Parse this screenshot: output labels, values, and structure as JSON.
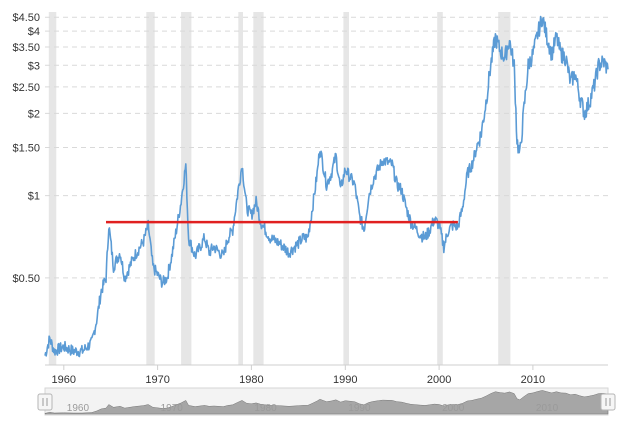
{
  "chart_data": {
    "type": "line",
    "title": "",
    "xlabel": "",
    "ylabel": "",
    "y_scale": "log",
    "ylim": [
      0.24,
      4.7
    ],
    "xlim": [
      1958.0,
      2018.0
    ],
    "grid": true,
    "legend": "none",
    "y_ticks": [
      {
        "value": 4.5,
        "label": "$4.50"
      },
      {
        "value": 4.0,
        "label": "$4"
      },
      {
        "value": 3.5,
        "label": "$3.50"
      },
      {
        "value": 3.0,
        "label": "$3"
      },
      {
        "value": 2.5,
        "label": "$2.50"
      },
      {
        "value": 2.0,
        "label": "$2"
      },
      {
        "value": 1.5,
        "label": "$1.50"
      },
      {
        "value": 1.0,
        "label": "$1"
      },
      {
        "value": 0.5,
        "label": "$0.50"
      }
    ],
    "x_ticks": [
      {
        "value": 1960,
        "label": "1960"
      },
      {
        "value": 1970,
        "label": "1970"
      },
      {
        "value": 1980,
        "label": "1980"
      },
      {
        "value": 1990,
        "label": "1990"
      },
      {
        "value": 2000,
        "label": "2000"
      },
      {
        "value": 2010,
        "label": "2010"
      }
    ],
    "recessions": [
      [
        1958.4,
        1959.2
      ],
      [
        1968.8,
        1969.7
      ],
      [
        1972.5,
        1973.6
      ],
      [
        1978.6,
        1979.1
      ],
      [
        1980.2,
        1981.3
      ],
      [
        1989.8,
        1990.4
      ],
      [
        1999.8,
        2000.4
      ],
      [
        2006.3,
        2007.6
      ]
    ],
    "reference_line": {
      "x_start": 1964.5,
      "x_end": 2002.0,
      "value": 0.8,
      "color": "#e02020"
    },
    "series": [
      {
        "color": "#5b9bd5",
        "points": [
          [
            1958.0,
            0.26
          ],
          [
            1958.5,
            0.3
          ],
          [
            1959.0,
            0.27
          ],
          [
            1960.0,
            0.28
          ],
          [
            1961.0,
            0.27
          ],
          [
            1962.0,
            0.27
          ],
          [
            1963.0,
            0.29
          ],
          [
            1963.5,
            0.35
          ],
          [
            1964.0,
            0.45
          ],
          [
            1964.5,
            0.5
          ],
          [
            1964.8,
            0.78
          ],
          [
            1965.3,
            0.55
          ],
          [
            1966.0,
            0.62
          ],
          [
            1966.5,
            0.5
          ],
          [
            1967.5,
            0.6
          ],
          [
            1968.5,
            0.68
          ],
          [
            1969.0,
            0.78
          ],
          [
            1969.5,
            0.55
          ],
          [
            1970.5,
            0.48
          ],
          [
            1971.0,
            0.5
          ],
          [
            1971.5,
            0.6
          ],
          [
            1972.0,
            0.75
          ],
          [
            1972.5,
            0.95
          ],
          [
            1973.0,
            1.3
          ],
          [
            1973.3,
            0.7
          ],
          [
            1974.0,
            0.6
          ],
          [
            1975.0,
            0.7
          ],
          [
            1975.5,
            0.62
          ],
          [
            1976.0,
            0.65
          ],
          [
            1977.0,
            0.6
          ],
          [
            1977.5,
            0.7
          ],
          [
            1978.0,
            0.75
          ],
          [
            1978.5,
            1.0
          ],
          [
            1979.0,
            1.3
          ],
          [
            1979.5,
            0.9
          ],
          [
            1980.0,
            0.85
          ],
          [
            1980.5,
            0.95
          ],
          [
            1981.0,
            0.8
          ],
          [
            1982.0,
            0.7
          ],
          [
            1983.0,
            0.67
          ],
          [
            1984.0,
            0.62
          ],
          [
            1985.0,
            0.67
          ],
          [
            1985.5,
            0.7
          ],
          [
            1986.0,
            0.7
          ],
          [
            1986.5,
            0.9
          ],
          [
            1987.0,
            1.2
          ],
          [
            1987.3,
            1.5
          ],
          [
            1988.0,
            1.1
          ],
          [
            1988.5,
            1.2
          ],
          [
            1989.0,
            1.4
          ],
          [
            1989.5,
            1.05
          ],
          [
            1990.0,
            1.25
          ],
          [
            1991.0,
            1.1
          ],
          [
            1991.5,
            0.85
          ],
          [
            1992.0,
            0.75
          ],
          [
            1992.5,
            1.0
          ],
          [
            1993.0,
            1.15
          ],
          [
            1993.5,
            1.25
          ],
          [
            1994.0,
            1.35
          ],
          [
            1995.0,
            1.3
          ],
          [
            1995.5,
            1.1
          ],
          [
            1996.0,
            1.05
          ],
          [
            1996.5,
            0.9
          ],
          [
            1997.0,
            0.8
          ],
          [
            1998.0,
            0.72
          ],
          [
            1998.5,
            0.7
          ],
          [
            1999.0,
            0.75
          ],
          [
            1999.5,
            0.82
          ],
          [
            2000.0,
            0.78
          ],
          [
            2000.5,
            0.65
          ],
          [
            2001.0,
            0.75
          ],
          [
            2001.5,
            0.78
          ],
          [
            2002.0,
            0.77
          ],
          [
            2002.5,
            0.9
          ],
          [
            2003.0,
            1.2
          ],
          [
            2003.5,
            1.3
          ],
          [
            2004.0,
            1.5
          ],
          [
            2004.5,
            1.7
          ],
          [
            2005.0,
            2.2
          ],
          [
            2005.5,
            3.0
          ],
          [
            2006.0,
            3.8
          ],
          [
            2006.5,
            3.4
          ],
          [
            2007.0,
            3.2
          ],
          [
            2007.5,
            3.7
          ],
          [
            2008.0,
            3.0
          ],
          [
            2008.3,
            1.6
          ],
          [
            2008.6,
            1.4
          ],
          [
            2009.0,
            2.0
          ],
          [
            2009.5,
            3.0
          ],
          [
            2010.0,
            3.3
          ],
          [
            2010.5,
            3.9
          ],
          [
            2011.0,
            4.5
          ],
          [
            2011.5,
            3.8
          ],
          [
            2012.0,
            3.3
          ],
          [
            2012.5,
            3.8
          ],
          [
            2013.0,
            3.3
          ],
          [
            2013.5,
            3.2
          ],
          [
            2014.0,
            2.6
          ],
          [
            2014.5,
            2.8
          ],
          [
            2015.0,
            2.3
          ],
          [
            2015.5,
            2.0
          ],
          [
            2016.0,
            2.2
          ],
          [
            2016.5,
            2.5
          ],
          [
            2017.0,
            3.0
          ],
          [
            2017.5,
            3.1
          ],
          [
            2018.0,
            2.9
          ]
        ]
      }
    ]
  }
}
